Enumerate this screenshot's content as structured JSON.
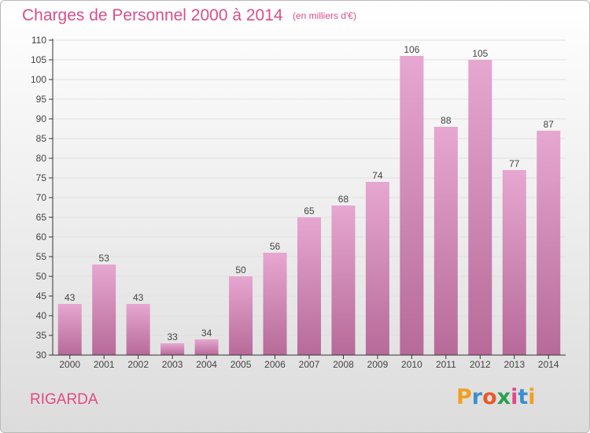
{
  "header": {
    "title": "Charges de Personnel 2000 à 2014",
    "subtitle": "(en milliers d'€)"
  },
  "footer": {
    "commune": "RIGARDA",
    "logo_letters": [
      "P",
      "r",
      "o",
      "x",
      "i",
      "t",
      "i"
    ],
    "logo_colors": [
      "#f0a020",
      "#3a8fd0",
      "#e85a2a",
      "#2aa050",
      "#e04a84",
      "#3a8fd0",
      "#f0a020"
    ]
  },
  "colors": {
    "bar_top": "#e6a7d0",
    "bar_bottom": "#b76a99",
    "text": "#444444",
    "grid": "#e0e0e0",
    "axis": "#333333"
  },
  "chart_data": {
    "type": "bar",
    "title": "Charges de Personnel 2000 à 2014",
    "subtitle": "(en milliers d'€)",
    "xlabel": "",
    "ylabel": "",
    "categories": [
      "2000",
      "2001",
      "2002",
      "2003",
      "2004",
      "2005",
      "2006",
      "2007",
      "2008",
      "2009",
      "2010",
      "2011",
      "2012",
      "2013",
      "2014"
    ],
    "values": [
      43,
      53,
      43,
      33,
      34,
      50,
      56,
      65,
      68,
      74,
      106,
      88,
      105,
      77,
      87
    ],
    "ylim": [
      30,
      110
    ],
    "yticks": [
      30,
      35,
      40,
      45,
      50,
      55,
      60,
      65,
      70,
      75,
      80,
      85,
      90,
      95,
      100,
      105,
      110
    ],
    "grid": true,
    "legend": "none"
  }
}
